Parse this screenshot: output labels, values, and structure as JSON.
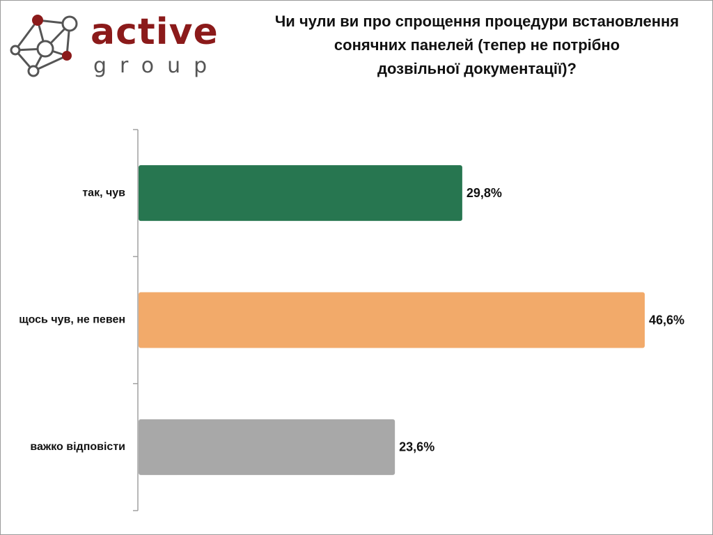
{
  "brand": {
    "name": "active",
    "sub": "group"
  },
  "colors": {
    "brand": "#8b1a1a",
    "logo_lines": "#555555"
  },
  "chart_data": {
    "type": "bar",
    "orientation": "horizontal",
    "title": "Чи чули ви про спрощення процедури встановлення\nсонячних панелей (тепер не потрібно\nдозвільної документації)?",
    "xlabel": "",
    "ylabel": "",
    "xlim": [
      0,
      50
    ],
    "grid": false,
    "categories": [
      "так, чув",
      "щось чув, не певен",
      "важко відповісти"
    ],
    "values": [
      29.8,
      46.6,
      23.6
    ],
    "value_labels": [
      "29,8%",
      "46,6%",
      "23,6%"
    ],
    "bar_colors": [
      "#277650",
      "#f2aa6a",
      "#a8a8a8"
    ],
    "unit": "%"
  }
}
